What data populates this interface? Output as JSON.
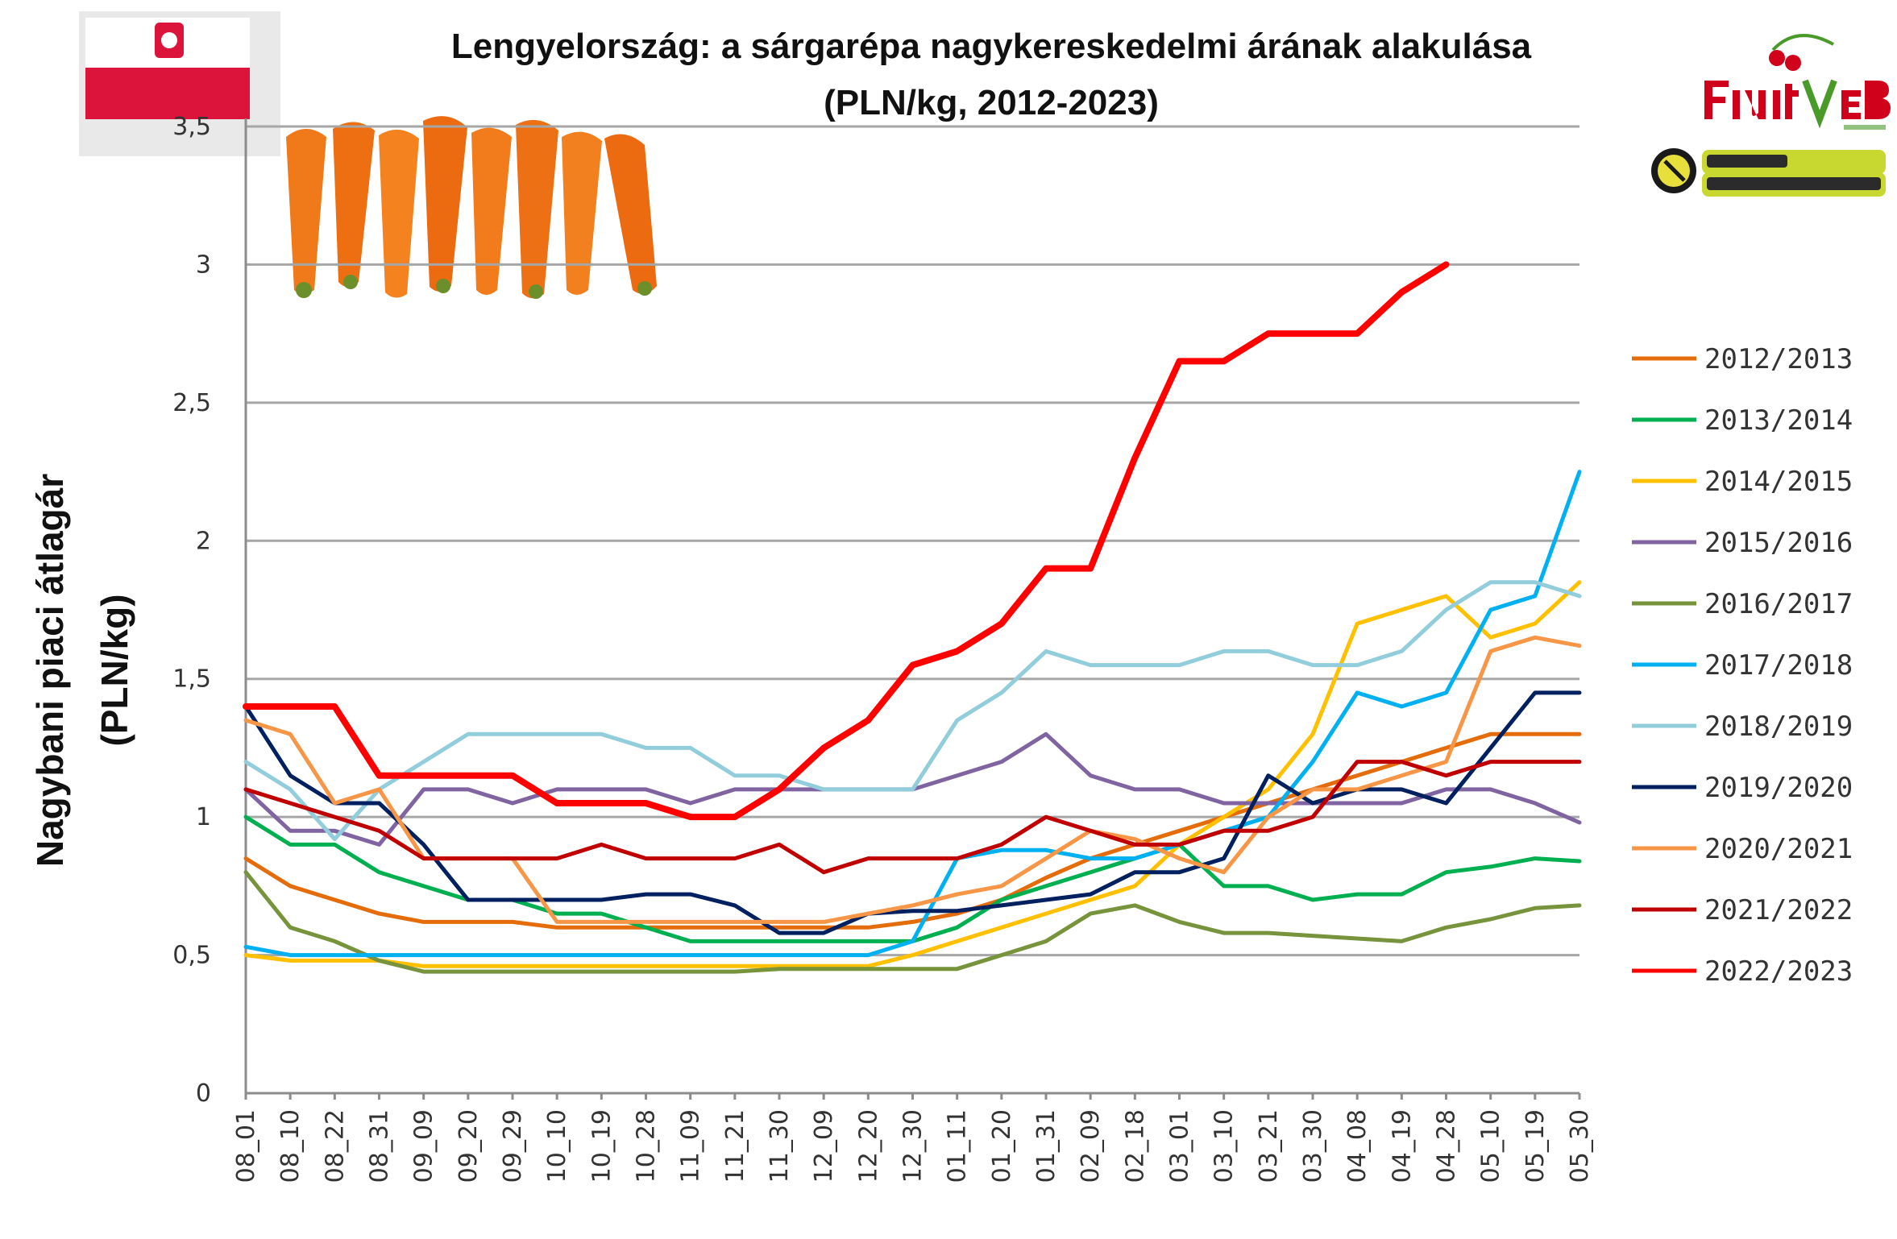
{
  "chart_data": {
    "type": "line",
    "title": "Lengyelország: a sárgarépa nagykereskedelmi árának alakulása",
    "subtitle": "(PLN/kg, 2012-2023)",
    "ylabel_line1": "Nagybani piaci átlagár",
    "ylabel_line2": "(PLN/kg)",
    "xlabel": "",
    "ylim": [
      0,
      3.5
    ],
    "yticks": [
      "0",
      "0,5",
      "1",
      "1,5",
      "2",
      "2,5",
      "3",
      "3,5"
    ],
    "ytick_values": [
      0,
      0.5,
      1,
      1.5,
      2,
      2.5,
      3,
      3.5
    ],
    "xticks": [
      "08_01",
      "08_10",
      "08_22",
      "08_31",
      "09_09",
      "09_20",
      "09_29",
      "10_10",
      "10_19",
      "10_28",
      "11_09",
      "11_21",
      "11_30",
      "12_09",
      "12_20",
      "12_30",
      "01_11",
      "01_20",
      "01_31",
      "02_09",
      "02_18",
      "03_01",
      "03_10",
      "03_21",
      "03_30",
      "04_08",
      "04_19",
      "04_28",
      "05_10",
      "05_19",
      "05_30"
    ],
    "grid": true,
    "legend_position": "right",
    "series": [
      {
        "name": "2012/2013",
        "color": "#e46c0a",
        "values": [
          0.85,
          0.75,
          0.7,
          0.65,
          0.62,
          0.62,
          0.62,
          0.6,
          0.6,
          0.6,
          0.6,
          0.6,
          0.6,
          0.6,
          0.6,
          0.62,
          0.65,
          0.7,
          0.78,
          0.85,
          0.9,
          0.95,
          1.0,
          1.05,
          1.1,
          1.15,
          1.2,
          1.25,
          1.3,
          1.3,
          1.3
        ]
      },
      {
        "name": "2013/2014",
        "color": "#00b050",
        "values": [
          1.0,
          0.9,
          0.9,
          0.8,
          0.75,
          0.7,
          0.7,
          0.65,
          0.65,
          0.6,
          0.55,
          0.55,
          0.55,
          0.55,
          0.55,
          0.55,
          0.6,
          0.7,
          0.75,
          0.8,
          0.85,
          0.9,
          0.75,
          0.75,
          0.7,
          0.72,
          0.72,
          0.8,
          0.82,
          0.85,
          0.84
        ]
      },
      {
        "name": "2014/2015",
        "color": "#ffc000",
        "values": [
          0.5,
          0.48,
          0.48,
          0.48,
          0.46,
          0.46,
          0.46,
          0.46,
          0.46,
          0.46,
          0.46,
          0.46,
          0.46,
          0.46,
          0.46,
          0.5,
          0.55,
          0.6,
          0.65,
          0.7,
          0.75,
          0.9,
          1.0,
          1.1,
          1.3,
          1.7,
          1.75,
          1.8,
          1.65,
          1.7,
          1.85
        ]
      },
      {
        "name": "2015/2016",
        "color": "#8064a2",
        "values": [
          1.1,
          0.95,
          0.95,
          0.9,
          1.1,
          1.1,
          1.05,
          1.1,
          1.1,
          1.1,
          1.05,
          1.1,
          1.1,
          1.1,
          1.1,
          1.1,
          1.15,
          1.2,
          1.3,
          1.15,
          1.1,
          1.1,
          1.05,
          1.05,
          1.05,
          1.05,
          1.05,
          1.1,
          1.1,
          1.05,
          0.98
        ]
      },
      {
        "name": "2016/2017",
        "color": "#77933c",
        "values": [
          0.8,
          0.6,
          0.55,
          0.48,
          0.44,
          0.44,
          0.44,
          0.44,
          0.44,
          0.44,
          0.44,
          0.44,
          0.45,
          0.45,
          0.45,
          0.45,
          0.45,
          0.5,
          0.55,
          0.65,
          0.68,
          0.62,
          0.58,
          0.58,
          0.57,
          0.56,
          0.55,
          0.6,
          0.63,
          0.67,
          0.68
        ]
      },
      {
        "name": "2017/2018",
        "color": "#00b0f0",
        "values": [
          0.53,
          0.5,
          0.5,
          0.5,
          0.5,
          0.5,
          0.5,
          0.5,
          0.5,
          0.5,
          0.5,
          0.5,
          0.5,
          0.5,
          0.5,
          0.55,
          0.85,
          0.88,
          0.88,
          0.85,
          0.85,
          0.9,
          0.95,
          1.0,
          1.2,
          1.45,
          1.4,
          1.45,
          1.75,
          1.8,
          2.25
        ]
      },
      {
        "name": "2018/2019",
        "color": "#92cddc",
        "values": [
          1.2,
          1.1,
          0.92,
          1.1,
          1.2,
          1.3,
          1.3,
          1.3,
          1.3,
          1.25,
          1.25,
          1.15,
          1.15,
          1.1,
          1.1,
          1.1,
          1.35,
          1.45,
          1.6,
          1.55,
          1.55,
          1.55,
          1.6,
          1.6,
          1.55,
          1.55,
          1.6,
          1.75,
          1.85,
          1.85,
          1.8
        ]
      },
      {
        "name": "2019/2020",
        "color": "#002060",
        "values": [
          1.4,
          1.15,
          1.05,
          1.05,
          0.9,
          0.7,
          0.7,
          0.7,
          0.7,
          0.72,
          0.72,
          0.68,
          0.58,
          0.58,
          0.65,
          0.66,
          0.66,
          0.68,
          0.7,
          0.72,
          0.8,
          0.8,
          0.85,
          1.15,
          1.05,
          1.1,
          1.1,
          1.05,
          1.25,
          1.45,
          1.45
        ]
      },
      {
        "name": "2020/2021",
        "color": "#f79646",
        "values": [
          1.35,
          1.3,
          1.05,
          1.1,
          0.85,
          0.85,
          0.85,
          0.62,
          0.62,
          0.62,
          0.62,
          0.62,
          0.62,
          0.62,
          0.65,
          0.68,
          0.72,
          0.75,
          0.85,
          0.95,
          0.92,
          0.85,
          0.8,
          1.0,
          1.1,
          1.1,
          1.15,
          1.2,
          1.6,
          1.65,
          1.62
        ]
      },
      {
        "name": "2021/2022",
        "color": "#c00000",
        "values": [
          1.1,
          1.05,
          1.0,
          0.95,
          0.85,
          0.85,
          0.85,
          0.85,
          0.9,
          0.85,
          0.85,
          0.85,
          0.9,
          0.8,
          0.85,
          0.85,
          0.85,
          0.9,
          1.0,
          0.95,
          0.9,
          0.9,
          0.95,
          0.95,
          1.0,
          1.2,
          1.2,
          1.15,
          1.2,
          1.2,
          1.2
        ]
      },
      {
        "name": "2022/2023",
        "color": "#ff0000",
        "values": [
          1.4,
          1.4,
          1.4,
          1.15,
          1.15,
          1.15,
          1.15,
          1.05,
          1.05,
          1.05,
          1.0,
          1.0,
          1.1,
          1.25,
          1.35,
          1.55,
          1.6,
          1.7,
          1.9,
          1.9,
          2.3,
          2.65,
          2.65,
          2.75,
          2.75,
          2.75,
          2.9,
          3.0
        ]
      }
    ]
  }
}
